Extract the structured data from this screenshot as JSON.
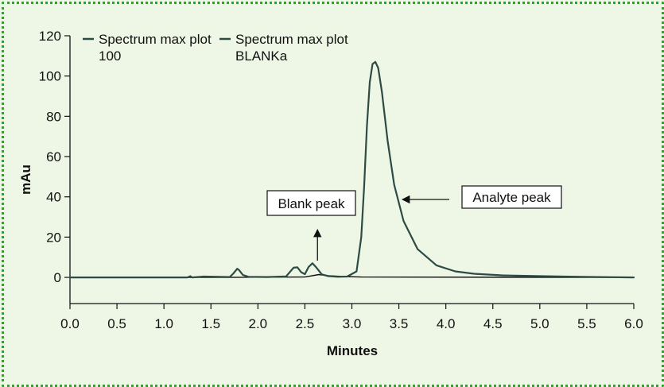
{
  "chart_data": {
    "type": "line",
    "xlabel": "Minutes",
    "ylabel": "mAu",
    "xlim": [
      0.0,
      6.0
    ],
    "ylim": [
      -13,
      120
    ],
    "x_ticks": [
      "0.0",
      "0.5",
      "1.0",
      "1.5",
      "2.0",
      "2.5",
      "3.0",
      "3.5",
      "4.0",
      "4.5",
      "5.0",
      "5.5",
      "6.0"
    ],
    "y_ticks": [
      "0",
      "20",
      "40",
      "60",
      "80",
      "100",
      "120"
    ],
    "grid": false,
    "legend_position": "top-left",
    "colors": {
      "series": "#2d4a44",
      "baseline": "#111111"
    },
    "series": [
      {
        "name": "Spectrum max plot 100",
        "x": [
          0.0,
          1.25,
          1.28,
          1.3,
          1.42,
          1.7,
          1.74,
          1.78,
          1.8,
          1.84,
          1.9,
          2.1,
          2.3,
          2.38,
          2.42,
          2.46,
          2.5,
          2.54,
          2.58,
          2.62,
          2.68,
          2.75,
          2.85,
          2.95,
          3.05,
          3.1,
          3.13,
          3.16,
          3.19,
          3.22,
          3.25,
          3.28,
          3.32,
          3.38,
          3.45,
          3.55,
          3.7,
          3.9,
          4.1,
          4.3,
          4.6,
          5.0,
          5.45,
          6.0
        ],
        "y": [
          0,
          0,
          0.6,
          0,
          0.4,
          0.2,
          2.0,
          4.3,
          3.6,
          1.2,
          0.3,
          0.2,
          0.5,
          4.8,
          5.0,
          2.6,
          1.6,
          5.2,
          7.0,
          5.0,
          1.5,
          0.6,
          0.3,
          0.4,
          3.0,
          20,
          45,
          75,
          97,
          106,
          107,
          104,
          92,
          68,
          46,
          28,
          14,
          6,
          3,
          1.8,
          1.0,
          0.6,
          0.3,
          0
        ]
      },
      {
        "name": "Spectrum max plot BLANKa",
        "x": [
          0.0,
          1.6,
          2.5,
          2.65,
          2.75,
          2.9,
          3.1,
          6.0
        ],
        "y": [
          0,
          0,
          0.2,
          1.4,
          0.8,
          0.4,
          0.2,
          0
        ]
      }
    ],
    "annotations": [
      {
        "text": "Blank peak",
        "target_x": 2.6,
        "target_y": 8,
        "arrow": "up"
      },
      {
        "text": "Analyte peak",
        "target_x": 3.5,
        "target_y": 42,
        "arrow": "left"
      }
    ]
  }
}
